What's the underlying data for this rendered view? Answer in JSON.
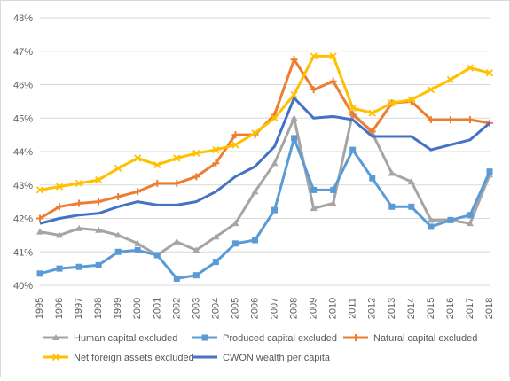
{
  "chart_data": {
    "type": "line",
    "title": "",
    "xlabel": "",
    "ylabel": "",
    "x": [
      "1995",
      "1996",
      "1997",
      "1998",
      "1999",
      "2000",
      "2001",
      "2002",
      "2003",
      "2004",
      "2005",
      "2006",
      "2007",
      "2008",
      "2009",
      "2010",
      "2011",
      "2012",
      "2013",
      "2014",
      "2015",
      "2016",
      "2017",
      "2018"
    ],
    "ylim": [
      40,
      48
    ],
    "yticks": [
      "40%",
      "41%",
      "42%",
      "43%",
      "44%",
      "45%",
      "46%",
      "47%",
      "48%"
    ],
    "grid": true,
    "legend_position": "bottom",
    "series": [
      {
        "name": "Human capital excluded",
        "color": "#a5a5a5",
        "marker": "triangle",
        "values": [
          41.6,
          41.5,
          41.7,
          41.65,
          41.5,
          41.25,
          40.9,
          41.3,
          41.05,
          41.45,
          41.85,
          42.8,
          43.65,
          45.0,
          42.3,
          42.45,
          45.15,
          44.55,
          43.35,
          43.1,
          41.95,
          41.95,
          41.85,
          43.3
        ]
      },
      {
        "name": "Produced capital excluded",
        "color": "#5b9bd5",
        "marker": "square",
        "values": [
          40.35,
          40.5,
          40.55,
          40.6,
          41.0,
          41.05,
          40.9,
          40.2,
          40.3,
          40.7,
          41.25,
          41.35,
          42.25,
          44.4,
          42.85,
          42.85,
          44.05,
          43.2,
          42.35,
          42.35,
          41.75,
          41.95,
          42.1,
          43.4
        ]
      },
      {
        "name": "Natural capital excluded",
        "color": "#ed7d31",
        "marker": "plus",
        "values": [
          42.0,
          42.35,
          42.45,
          42.5,
          42.65,
          42.8,
          43.05,
          43.05,
          43.25,
          43.65,
          44.5,
          44.5,
          45.1,
          46.75,
          45.85,
          46.1,
          45.1,
          44.6,
          45.45,
          45.5,
          44.95,
          44.95,
          44.95,
          44.85
        ]
      },
      {
        "name": "Net foreign assets excluded",
        "color": "#ffc000",
        "marker": "cross",
        "values": [
          42.85,
          42.95,
          43.05,
          43.15,
          43.5,
          43.8,
          43.6,
          43.8,
          43.95,
          44.05,
          44.2,
          44.55,
          45.0,
          45.7,
          46.85,
          46.85,
          45.3,
          45.15,
          45.45,
          45.55,
          45.85,
          46.15,
          46.5,
          46.35
        ]
      },
      {
        "name": "CWON wealth per capita",
        "color": "#4472c4",
        "marker": "none",
        "values": [
          41.85,
          42.0,
          42.1,
          42.15,
          42.35,
          42.5,
          42.4,
          42.4,
          42.5,
          42.8,
          43.25,
          43.55,
          44.15,
          45.6,
          45.0,
          45.05,
          44.95,
          44.45,
          44.45,
          44.45,
          44.05,
          44.2,
          44.35,
          44.85
        ]
      }
    ]
  }
}
